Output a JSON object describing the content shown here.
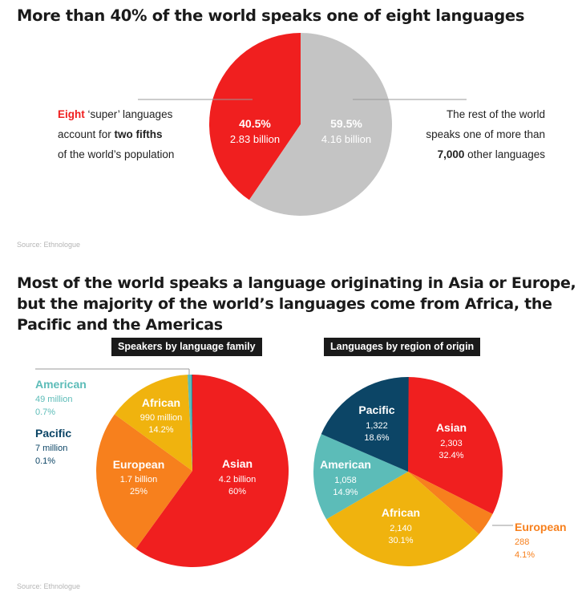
{
  "chart1": {
    "title": "More than 40% of the world speaks one of eight languages",
    "left_annotation": {
      "line1_highlight": "Eight",
      "line1_rest": " ‘super’ languages",
      "line2_prefix": "account for ",
      "line2_bold": "two fifths",
      "line3": "of the world’s population"
    },
    "right_annotation": {
      "line1": "The rest of the world",
      "line2": "speaks one of more than",
      "line3_bold": "7,000",
      "line3_rest": " other languages"
    },
    "source": "Source: Ethnologue"
  },
  "chart2": {
    "title": "Most of the world speaks a language originating in Asia or Europe, but the majority of the world’s languages come from Africa, the Pacific and the Americas",
    "left_header": "Speakers by language family",
    "right_header": "Languages by region of origin",
    "source": "Source: Ethnologue"
  },
  "colors": {
    "red": "#f01f1f",
    "grey": "#c4c4c4",
    "orange": "#f7801d",
    "yellow": "#f0b30e",
    "teal": "#5cbcb8",
    "navy": "#0c4566"
  },
  "chart_data": [
    {
      "type": "pie",
      "title": "More than 40% of the world speaks one of eight languages",
      "slices": [
        {
          "percent": "40.5%",
          "value": "2.83 billion",
          "share": 40.5,
          "color": "#f01f1f"
        },
        {
          "percent": "59.5%",
          "value": "4.16 billion",
          "share": 59.5,
          "color": "#c4c4c4"
        }
      ]
    },
    {
      "type": "pie",
      "title": "Speakers by language family",
      "slices": [
        {
          "name": "Asian",
          "value": "4.2 billion",
          "percent": "60%",
          "share": 60,
          "color": "#f01f1f"
        },
        {
          "name": "European",
          "value": "1.7 billion",
          "percent": "25%",
          "share": 25,
          "color": "#f7801d"
        },
        {
          "name": "African",
          "value": "990 million",
          "percent": "14.2%",
          "share": 14.2,
          "color": "#f0b30e"
        },
        {
          "name": "American",
          "value": "49 million",
          "percent": "0.7%",
          "share": 0.7,
          "color": "#5cbcb8"
        },
        {
          "name": "Pacific",
          "value": "7 million",
          "percent": "0.1%",
          "share": 0.1,
          "color": "#0c4566"
        }
      ]
    },
    {
      "type": "pie",
      "title": "Languages by region of origin",
      "slices": [
        {
          "name": "Asian",
          "value": "2,303",
          "percent": "32.4%",
          "share": 32.4,
          "color": "#f01f1f"
        },
        {
          "name": "European",
          "value": "288",
          "percent": "4.1%",
          "share": 4.1,
          "color": "#f7801d"
        },
        {
          "name": "African",
          "value": "2,140",
          "percent": "30.1%",
          "share": 30.1,
          "color": "#f0b30e"
        },
        {
          "name": "American",
          "value": "1,058",
          "percent": "14.9%",
          "share": 14.9,
          "color": "#5cbcb8"
        },
        {
          "name": "Pacific",
          "value": "1,322",
          "percent": "18.6%",
          "share": 18.6,
          "color": "#0c4566"
        }
      ]
    }
  ]
}
